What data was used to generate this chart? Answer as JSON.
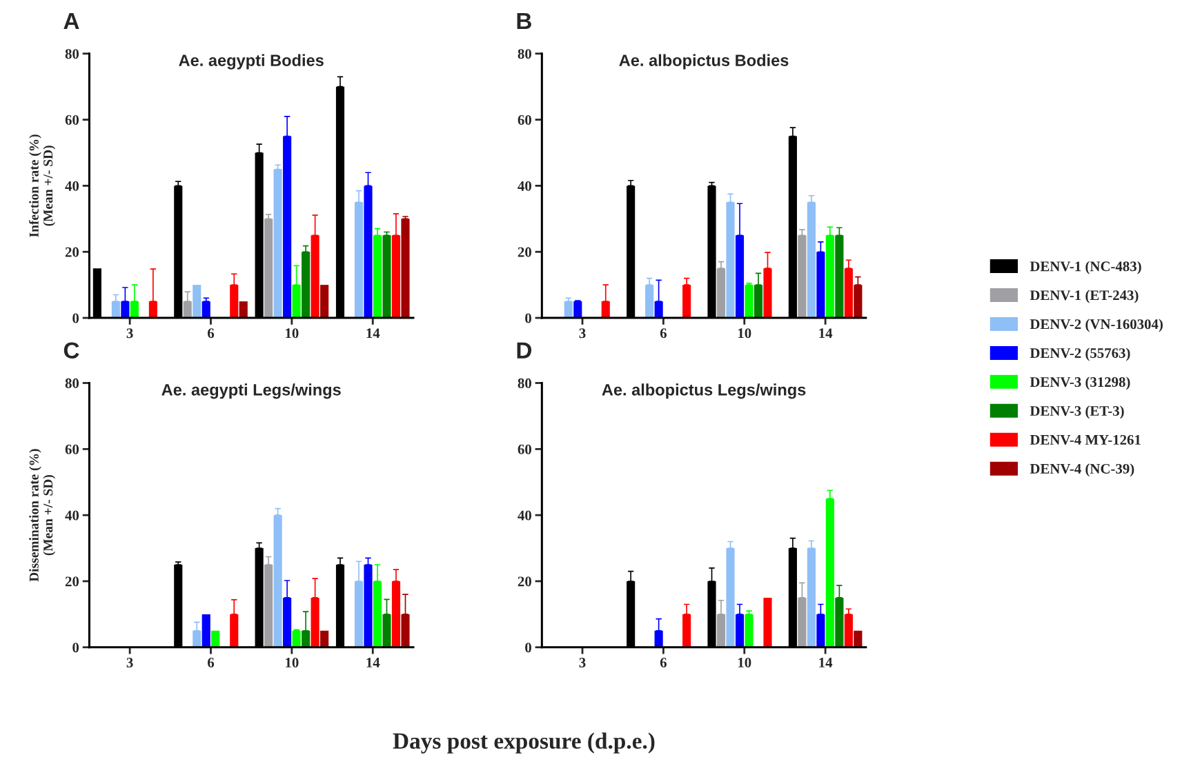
{
  "chart_data": [
    {
      "type": "bar",
      "title": "Ae. aegypti Bodies",
      "ylabel": "Infection rate (%)\n(Mean +/- SD)",
      "categories": [
        "3",
        "6",
        "10",
        "14"
      ],
      "ylim": [
        0,
        80
      ],
      "yticks": [
        0,
        20,
        40,
        60,
        80
      ],
      "grid": false,
      "legend": "right",
      "annotations": [
        "A",
        "Days post exposure (d.p.e.)"
      ],
      "series": [
        {
          "name": "DENV-1 (NC-483)",
          "color": "#000000",
          "values": [
            15,
            40,
            50,
            70
          ],
          "errors": [
            null,
            [
              40,
              41.3
            ],
            [
              50,
              52.6
            ],
            [
              70,
              73
            ]
          ]
        },
        {
          "name": "DENV-1 (ET-243)",
          "color": "#a0a0a4",
          "values": [
            0,
            5,
            30,
            0
          ],
          "errors": [
            null,
            [
              5,
              7.9
            ],
            [
              30,
              31.3
            ],
            null
          ]
        },
        {
          "name": "DENV-2 (VN-160304)",
          "color": "#8fbff7",
          "values": [
            5,
            10,
            45,
            35
          ],
          "errors": [
            [
              5,
              7
            ],
            null,
            [
              45,
              46.3
            ],
            [
              35,
              38.5
            ]
          ]
        },
        {
          "name": "DENV-2 (55763)",
          "color": "#0000ff",
          "values": [
            5,
            5,
            55,
            40
          ],
          "errors": [
            [
              5,
              9.2
            ],
            [
              5,
              6
            ],
            [
              55,
              61
            ],
            [
              40,
              44
            ]
          ]
        },
        {
          "name": "DENV-3 (31298)",
          "color": "#00ff00",
          "values": [
            5,
            0,
            10,
            25
          ],
          "errors": [
            [
              5,
              10
            ],
            null,
            [
              10,
              15.8
            ],
            [
              25,
              27
            ]
          ]
        },
        {
          "name": "DENV-3 (ET-3)",
          "color": "#007f00",
          "values": [
            0,
            0,
            20,
            25
          ],
          "errors": [
            null,
            null,
            [
              20,
              21.8
            ],
            [
              25,
              26
            ]
          ]
        },
        {
          "name": "DENV-4 MY-1261",
          "color": "#ff0000",
          "values": [
            5,
            10,
            25,
            25
          ],
          "errors": [
            [
              5,
              14.8
            ],
            [
              10,
              13.3
            ],
            [
              25,
              31.1
            ],
            [
              25,
              31.5
            ]
          ]
        },
        {
          "name": "DENV-4 (NC-39)",
          "color": "#a00000",
          "values": [
            0,
            5,
            10,
            30
          ],
          "errors": [
            null,
            null,
            null,
            [
              30,
              30.7
            ]
          ]
        }
      ]
    },
    {
      "type": "bar",
      "title": "Ae. albopictus Bodies",
      "categories": [
        "3",
        "6",
        "10",
        "14"
      ],
      "ylim": [
        0,
        80
      ],
      "yticks": [
        0,
        20,
        40,
        60,
        80
      ],
      "grid": false,
      "annotations": [
        "B"
      ],
      "series": [
        {
          "color": "#000000",
          "values": [
            0,
            40,
            40,
            55
          ],
          "errors": [
            null,
            [
              40,
              41.6
            ],
            [
              40,
              41
            ],
            [
              55,
              57.6
            ]
          ]
        },
        {
          "color": "#a0a0a4",
          "values": [
            0,
            0,
            15,
            25
          ],
          "errors": [
            null,
            null,
            [
              15,
              17
            ],
            [
              25,
              26.7
            ]
          ]
        },
        {
          "color": "#8fbff7",
          "values": [
            5,
            10,
            35,
            35
          ],
          "errors": [
            [
              5,
              6
            ],
            [
              10,
              12
            ],
            [
              35,
              37.5
            ],
            [
              35,
              37
            ]
          ]
        },
        {
          "color": "#0000ff",
          "values": [
            5,
            5,
            25,
            20
          ],
          "errors": [
            [
              5,
              5.2
            ],
            [
              5,
              11.4
            ],
            [
              25,
              34.6
            ],
            [
              20,
              23
            ]
          ]
        },
        {
          "color": "#00ff00",
          "values": [
            0,
            0,
            10,
            25
          ],
          "errors": [
            null,
            null,
            [
              10,
              10.5
            ],
            [
              25,
              27.5
            ]
          ]
        },
        {
          "color": "#007f00",
          "values": [
            0,
            0,
            10,
            25
          ],
          "errors": [
            null,
            null,
            [
              10,
              13.5
            ],
            [
              25,
              27.3
            ]
          ]
        },
        {
          "color": "#ff0000",
          "values": [
            5,
            10,
            15,
            15
          ],
          "errors": [
            [
              5,
              10
            ],
            [
              10,
              12
            ],
            [
              15,
              19.8
            ],
            [
              15,
              17.5
            ]
          ]
        },
        {
          "color": "#a00000",
          "values": [
            0,
            0,
            0,
            10
          ],
          "errors": [
            null,
            null,
            null,
            [
              10,
              12.4
            ]
          ]
        }
      ]
    },
    {
      "type": "bar",
      "title": "Ae. aegypti Legs/wings",
      "ylabel": "Dissemination rate (%)\n(Mean +/- SD)",
      "categories": [
        "3",
        "6",
        "10",
        "14"
      ],
      "ylim": [
        0,
        80
      ],
      "yticks": [
        0,
        20,
        40,
        60,
        80
      ],
      "grid": false,
      "annotations": [
        "C"
      ],
      "series": [
        {
          "color": "#000000",
          "values": [
            0,
            25,
            30,
            25
          ],
          "errors": [
            null,
            [
              25,
              25.8
            ],
            [
              30,
              31.6
            ],
            [
              25,
              27
            ]
          ]
        },
        {
          "color": "#a0a0a4",
          "values": [
            0,
            0,
            25,
            0
          ],
          "errors": [
            null,
            null,
            [
              25,
              27.4
            ],
            null
          ]
        },
        {
          "color": "#8fbff7",
          "values": [
            0,
            5,
            40,
            20
          ],
          "errors": [
            null,
            [
              5,
              7.6
            ],
            [
              40,
              42
            ],
            [
              20,
              26
            ]
          ]
        },
        {
          "color": "#0000ff",
          "values": [
            0,
            10,
            15,
            25
          ],
          "errors": [
            null,
            null,
            [
              15,
              20.2
            ],
            [
              25,
              27
            ]
          ]
        },
        {
          "color": "#00ff00",
          "values": [
            0,
            5,
            5,
            20
          ],
          "errors": [
            null,
            null,
            [
              5,
              5.3
            ],
            [
              20,
              25
            ]
          ]
        },
        {
          "color": "#007f00",
          "values": [
            0,
            0,
            5,
            10
          ],
          "errors": [
            null,
            null,
            [
              5,
              10.8
            ],
            [
              10,
              14.5
            ]
          ]
        },
        {
          "color": "#ff0000",
          "values": [
            0,
            10,
            15,
            20
          ],
          "errors": [
            null,
            [
              10,
              14.4
            ],
            [
              15,
              20.8
            ],
            [
              20,
              23.5
            ]
          ]
        },
        {
          "color": "#a00000",
          "values": [
            0,
            0,
            5,
            10
          ],
          "errors": [
            null,
            null,
            null,
            [
              10,
              16
            ]
          ]
        }
      ]
    },
    {
      "type": "bar",
      "title": "Ae. albopictus Legs/wings",
      "categories": [
        "3",
        "6",
        "10",
        "14"
      ],
      "ylim": [
        0,
        80
      ],
      "yticks": [
        0,
        20,
        40,
        60,
        80
      ],
      "grid": false,
      "annotations": [
        "D"
      ],
      "series": [
        {
          "color": "#000000",
          "values": [
            0,
            20,
            20,
            30
          ],
          "errors": [
            null,
            [
              20,
              23
            ],
            [
              20,
              24
            ],
            [
              30,
              33
            ]
          ]
        },
        {
          "color": "#a0a0a4",
          "values": [
            0,
            0,
            10,
            15
          ],
          "errors": [
            null,
            null,
            [
              10,
              14.2
            ],
            [
              15,
              19.5
            ]
          ]
        },
        {
          "color": "#8fbff7",
          "values": [
            0,
            0,
            30,
            30
          ],
          "errors": [
            null,
            null,
            [
              30,
              32
            ],
            [
              30,
              32.2
            ]
          ]
        },
        {
          "color": "#0000ff",
          "values": [
            0,
            5,
            10,
            10
          ],
          "errors": [
            null,
            [
              5,
              8.6
            ],
            [
              10,
              13
            ],
            [
              10,
              13
            ]
          ]
        },
        {
          "color": "#00ff00",
          "values": [
            0,
            0,
            10,
            45
          ],
          "errors": [
            null,
            null,
            [
              10,
              11
            ],
            [
              45,
              47.5
            ]
          ]
        },
        {
          "color": "#007f00",
          "values": [
            0,
            0,
            0,
            15
          ],
          "errors": [
            null,
            null,
            null,
            [
              15,
              18.7
            ]
          ]
        },
        {
          "color": "#ff0000",
          "values": [
            0,
            10,
            15,
            10
          ],
          "errors": [
            null,
            [
              10,
              13
            ],
            null,
            [
              10,
              11.6
            ]
          ]
        },
        {
          "color": "#a00000",
          "values": [
            0,
            0,
            0,
            5
          ],
          "errors": [
            null,
            null,
            null,
            null
          ]
        }
      ]
    }
  ]
}
